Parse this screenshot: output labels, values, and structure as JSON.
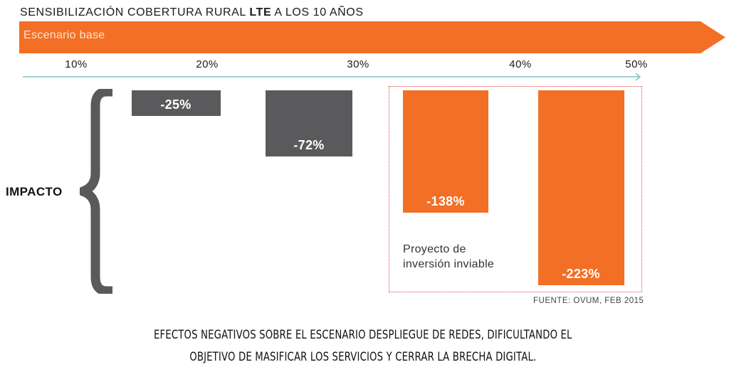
{
  "chart_data": {
    "type": "bar",
    "title_parts": [
      "SENSIBILIZACIÓN COBERTURA RURAL ",
      "LTE",
      " A LOS 10 AÑOS"
    ],
    "banner_label": "Escenario base",
    "categories": [
      "10%",
      "20%",
      "30%",
      "40%",
      "50%"
    ],
    "series": [
      {
        "name": "Impacto",
        "points": [
          {
            "x": "20%",
            "value": -25,
            "label": "-25%",
            "color": "#5a5a5c"
          },
          {
            "x": "30%",
            "value": -72,
            "label": "-72%",
            "color": "#5a5a5c"
          },
          {
            "x": "40%",
            "value": -138,
            "label": "-138%",
            "color": "#f26f25"
          },
          {
            "x": "50%",
            "value": -223,
            "label": "-223%",
            "color": "#f26f25"
          }
        ]
      }
    ],
    "ylabel": "IMPACTO",
    "ylim": [
      -250,
      0
    ],
    "annotation": "Proyecto de inversión inviable",
    "source": "FUENTE: OVUM, FEB 2015"
  },
  "footer": {
    "line1": "EFECTOS NEGATIVOS SOBRE EL ESCENARIO DESPLIEGUE DE REDES, DIFICULTANDO EL",
    "line2": "OBJETIVO DE MASIFICAR LOS SERVICIOS Y CERRAR LA BRECHA DIGITAL."
  },
  "colors": {
    "accent": "#f26f25",
    "gray_bar": "#5a5a5c",
    "axis_line": "#7fc4c4",
    "dotted_border": "#e0443e"
  }
}
